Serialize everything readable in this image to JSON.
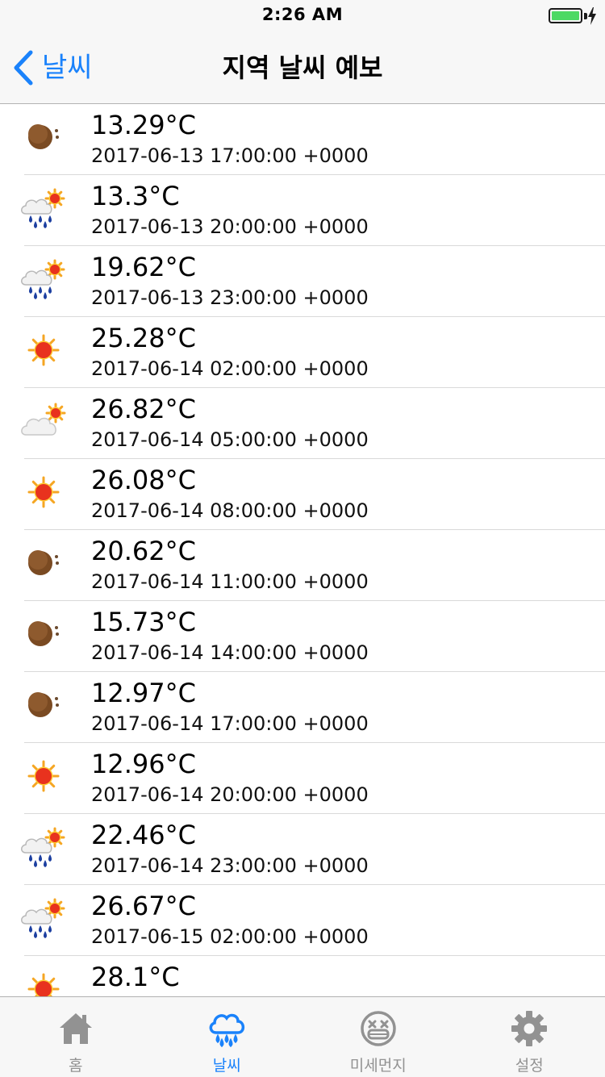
{
  "status": {
    "time": "2:26 AM",
    "battery_color": "#4cd964"
  },
  "nav": {
    "back_label": "날씨",
    "title": "지역 날씨 예보",
    "accent": "#1a82fb"
  },
  "forecast": [
    {
      "icon": "moon-icon",
      "temp": "13.29°C",
      "datetime": "2017-06-13 17:00:00 +0000"
    },
    {
      "icon": "rain-sun-icon",
      "temp": "13.3°C",
      "datetime": "2017-06-13 20:00:00 +0000"
    },
    {
      "icon": "rain-sun-icon",
      "temp": "19.62°C",
      "datetime": "2017-06-13 23:00:00 +0000"
    },
    {
      "icon": "sun-icon",
      "temp": "25.28°C",
      "datetime": "2017-06-14 02:00:00 +0000"
    },
    {
      "icon": "cloud-sun-icon",
      "temp": "26.82°C",
      "datetime": "2017-06-14 05:00:00 +0000"
    },
    {
      "icon": "sun-icon",
      "temp": "26.08°C",
      "datetime": "2017-06-14 08:00:00 +0000"
    },
    {
      "icon": "moon-icon",
      "temp": "20.62°C",
      "datetime": "2017-06-14 11:00:00 +0000"
    },
    {
      "icon": "moon-icon",
      "temp": "15.73°C",
      "datetime": "2017-06-14 14:00:00 +0000"
    },
    {
      "icon": "moon-icon",
      "temp": "12.97°C",
      "datetime": "2017-06-14 17:00:00 +0000"
    },
    {
      "icon": "sun-icon",
      "temp": "12.96°C",
      "datetime": "2017-06-14 20:00:00 +0000"
    },
    {
      "icon": "rain-sun-icon",
      "temp": "22.46°C",
      "datetime": "2017-06-14 23:00:00 +0000"
    },
    {
      "icon": "rain-sun-icon",
      "temp": "26.67°C",
      "datetime": "2017-06-15 02:00:00 +0000"
    },
    {
      "icon": "sun-icon",
      "temp": "28.1°C",
      "datetime": ""
    }
  ],
  "tabs": [
    {
      "label": "홈",
      "icon": "home-icon",
      "active": false
    },
    {
      "label": "날씨",
      "icon": "rain-cloud-icon",
      "active": true
    },
    {
      "label": "미세먼지",
      "icon": "dust-face-icon",
      "active": false
    },
    {
      "label": "설정",
      "icon": "gear-icon",
      "active": false
    }
  ],
  "colors": {
    "inactive_tab": "#929292",
    "active_tab": "#1a82fb"
  }
}
